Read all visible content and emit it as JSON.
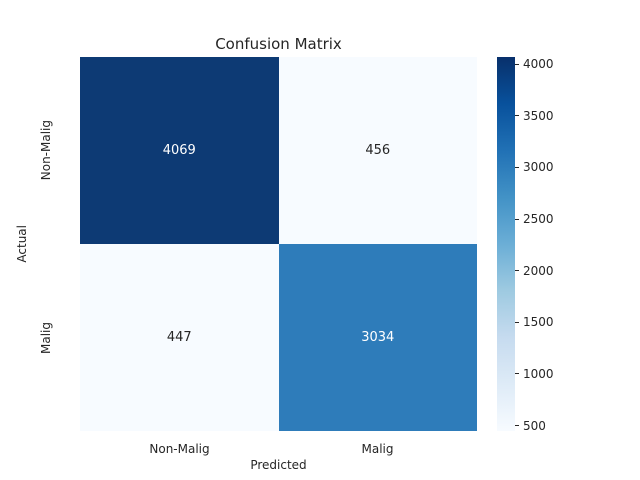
{
  "title": "Confusion Matrix",
  "colors": {
    "background": "#ffffff",
    "text": "#262626",
    "annot_light": "#ffffff",
    "annot_dark": "#262626"
  },
  "chart_data": {
    "type": "heatmap",
    "title": "Confusion Matrix",
    "xlabel": "Predicted",
    "ylabel": "Actual",
    "x_categories": [
      "Non-Malig",
      "Malig"
    ],
    "y_categories": [
      "Non-Malig",
      "Malig"
    ],
    "values": [
      [
        4069,
        456
      ],
      [
        447,
        3034
      ]
    ],
    "vmin": 447,
    "vmax": 4069,
    "colormap": "Blues",
    "cell_colors": [
      [
        "#0d3a74",
        "#f7fbff"
      ],
      [
        "#f7fbff",
        "#2e7cba"
      ]
    ],
    "cell_text_colors": [
      [
        "#ffffff",
        "#262626"
      ],
      [
        "#262626",
        "#ffffff"
      ]
    ],
    "legend_position": "right",
    "grid": false,
    "colorbar": {
      "ticks": [
        500,
        1000,
        1500,
        2000,
        2500,
        3000,
        3500,
        4000
      ],
      "gradient_stops_bottom_to_top": [
        "#f7fbff",
        "#deebf7",
        "#c6dbef",
        "#9ecae1",
        "#6baed6",
        "#4292c6",
        "#2171b5",
        "#08519c",
        "#08306b"
      ]
    }
  }
}
